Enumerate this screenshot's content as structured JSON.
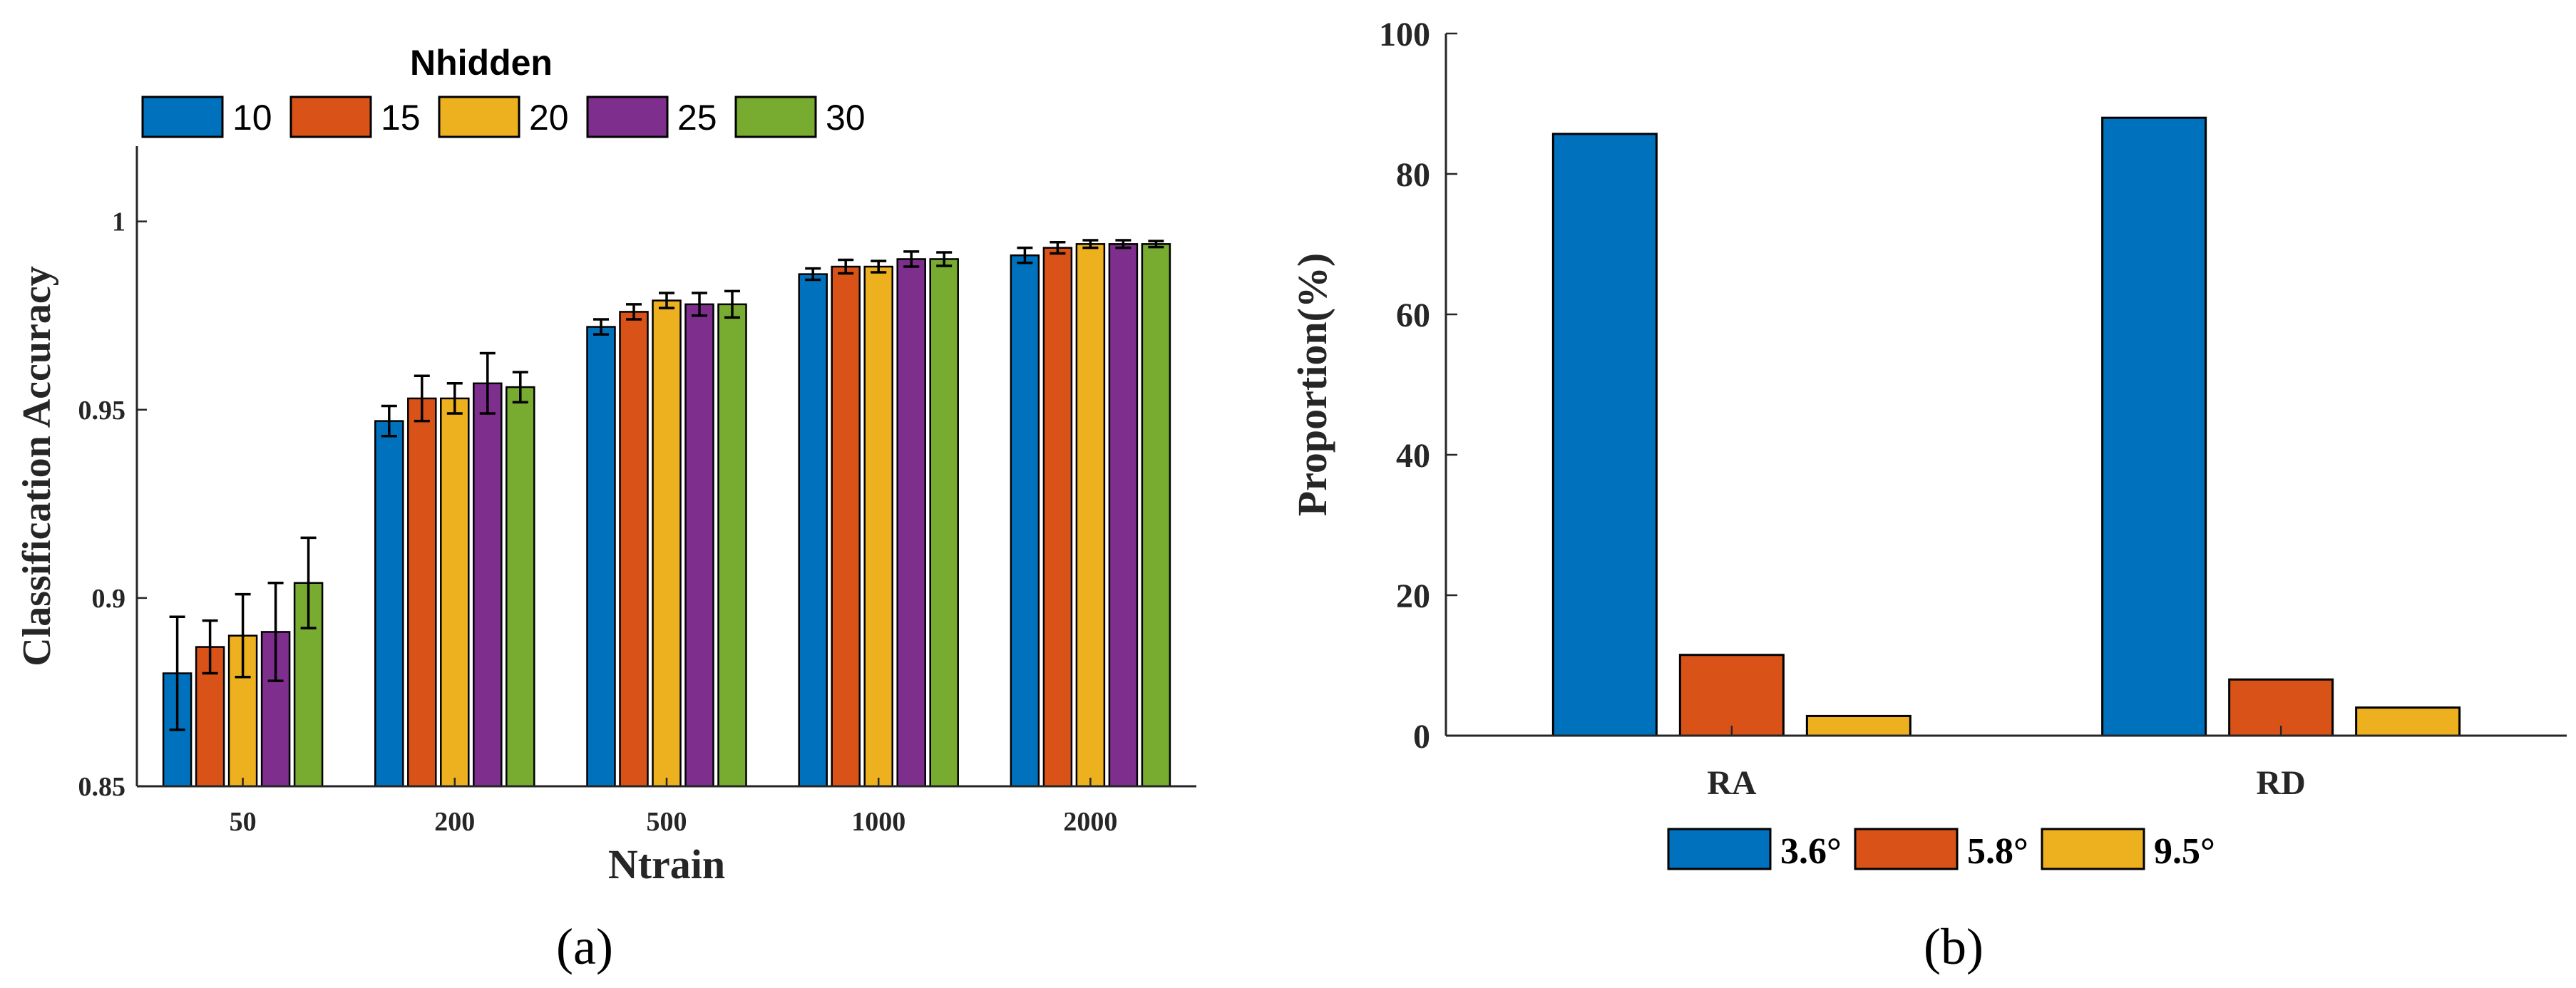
{
  "chart_data": [
    {
      "type": "bar",
      "panel_label": "(a)",
      "title": "",
      "xlabel": "Ntrain",
      "ylabel": "Classification Accuracy",
      "ylim": [
        0.85,
        1.02
      ],
      "yticks": [
        0.85,
        0.9,
        0.95,
        1.0
      ],
      "ytick_labels": [
        "0.85",
        "0.9",
        "0.95",
        "1"
      ],
      "categories": [
        "50",
        "200",
        "500",
        "1000",
        "2000"
      ],
      "legend_title": "Nhidden",
      "legend_position": "top",
      "grid": false,
      "error_bars": true,
      "series": [
        {
          "name": "10",
          "color": "#0072BD",
          "values": [
            0.88,
            0.947,
            0.972,
            0.986,
            0.991
          ],
          "errors": [
            0.015,
            0.004,
            0.002,
            0.0015,
            0.002
          ]
        },
        {
          "name": "15",
          "color": "#D95319",
          "values": [
            0.887,
            0.953,
            0.976,
            0.988,
            0.993
          ],
          "errors": [
            0.007,
            0.006,
            0.002,
            0.0018,
            0.0015
          ]
        },
        {
          "name": "20",
          "color": "#EDB120",
          "values": [
            0.89,
            0.953,
            0.979,
            0.988,
            0.994
          ],
          "errors": [
            0.011,
            0.004,
            0.002,
            0.0015,
            0.001
          ]
        },
        {
          "name": "25",
          "color": "#7E2F8E",
          "values": [
            0.891,
            0.957,
            0.978,
            0.99,
            0.994
          ],
          "errors": [
            0.013,
            0.008,
            0.003,
            0.002,
            0.001
          ]
        },
        {
          "name": "30",
          "color": "#77AC30",
          "values": [
            0.904,
            0.956,
            0.978,
            0.99,
            0.994
          ],
          "errors": [
            0.012,
            0.004,
            0.0035,
            0.0018,
            0.0008
          ]
        }
      ]
    },
    {
      "type": "bar",
      "panel_label": "(b)",
      "title": "",
      "xlabel": "",
      "ylabel": "Proportion(%)",
      "ylim": [
        0,
        100
      ],
      "yticks": [
        0,
        20,
        40,
        60,
        80,
        100
      ],
      "ytick_labels": [
        "0",
        "20",
        "40",
        "60",
        "80",
        "100"
      ],
      "categories": [
        "RA",
        "RD"
      ],
      "legend_position": "bottom",
      "grid": false,
      "series": [
        {
          "name": "3.6°",
          "color": "#0072BD",
          "values": [
            85.7,
            88.0
          ]
        },
        {
          "name": "5.8°",
          "color": "#D95319",
          "values": [
            11.5,
            8.0
          ]
        },
        {
          "name": "9.5°",
          "color": "#EDB120",
          "values": [
            2.8,
            4.0
          ]
        }
      ]
    }
  ]
}
